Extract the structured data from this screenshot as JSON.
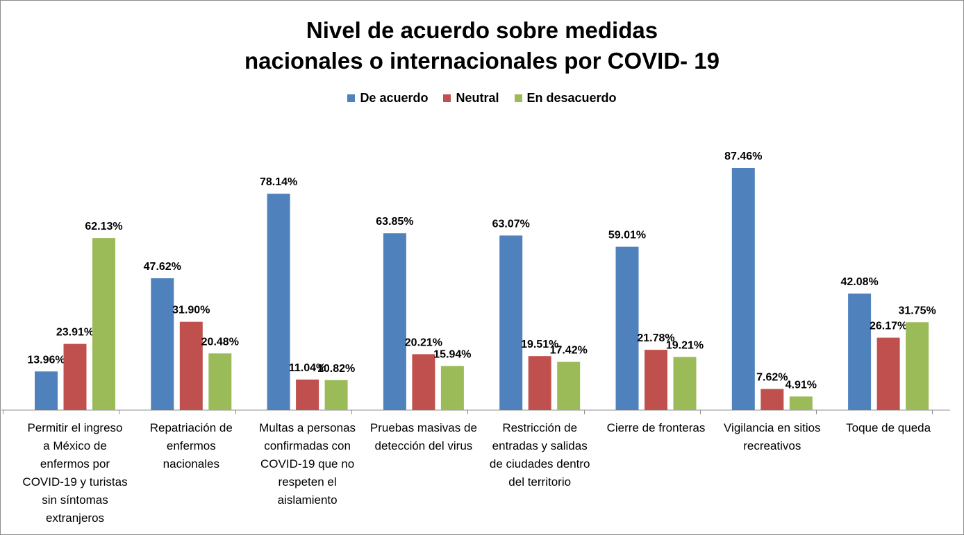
{
  "chart_data": {
    "type": "bar",
    "title_lines": [
      "Nivel de acuerdo sobre medidas",
      "nacionales o internacionales por COVID- 19"
    ],
    "legend_position": "top-center",
    "ylim": [
      0,
      100
    ],
    "grid": false,
    "categories": [
      "Permitir el ingreso a México de enfermos por COVID-19 y turistas sin síntomas extranjeros",
      "Repatriación de enfermos nacionales",
      "Multas a personas confirmadas con COVID-19  que no respeten el aislamiento",
      "Pruebas masivas de detección del virus",
      "Restricción de entradas y salidas de ciudades dentro del territorio",
      "Cierre de fronteras",
      "Vigilancia en sitios recreativos",
      "Toque de queda"
    ],
    "category_lines": [
      [
        "Permitir el ingreso",
        "a México de",
        "enfermos por",
        "COVID-19 y turistas",
        "sin síntomas",
        "extranjeros"
      ],
      [
        "Repatriación de",
        "enfermos",
        "nacionales"
      ],
      [
        "Multas a personas",
        "confirmadas con",
        "COVID-19  que no",
        "respeten el",
        "aislamiento"
      ],
      [
        "Pruebas masivas de",
        "detección del virus"
      ],
      [
        "Restricción de",
        "entradas y salidas",
        "de ciudades dentro",
        "del territorio"
      ],
      [
        "Cierre de fronteras"
      ],
      [
        "Vigilancia en sitios",
        "recreativos"
      ],
      [
        "Toque de queda"
      ]
    ],
    "series": [
      {
        "name": "De acuerdo",
        "color": "#4f81bd",
        "values": [
          13.96,
          47.62,
          78.14,
          63.85,
          63.07,
          59.01,
          87.46,
          42.08
        ],
        "labels": [
          "13.96%",
          "47.62%",
          "78.14%",
          "63.85%",
          "63.07%",
          "59.01%",
          "87.46%",
          "42.08%"
        ]
      },
      {
        "name": "Neutral",
        "color": "#c0504d",
        "values": [
          23.91,
          31.9,
          11.04,
          20.21,
          19.51,
          21.78,
          7.62,
          26.17
        ],
        "labels": [
          "23.91%",
          "31.90%",
          "11.04%",
          "20.21%",
          "19.51%",
          "21.78%",
          "7.62%",
          "26.17%"
        ]
      },
      {
        "name": "En desacuerdo",
        "color": "#9bbb59",
        "values": [
          62.13,
          20.48,
          10.82,
          15.94,
          17.42,
          19.21,
          4.91,
          31.75
        ],
        "labels": [
          "62.13%",
          "20.48%",
          "10.82%",
          "15.94%",
          "17.42%",
          "19.21%",
          "4.91%",
          "31.75%"
        ]
      }
    ]
  }
}
